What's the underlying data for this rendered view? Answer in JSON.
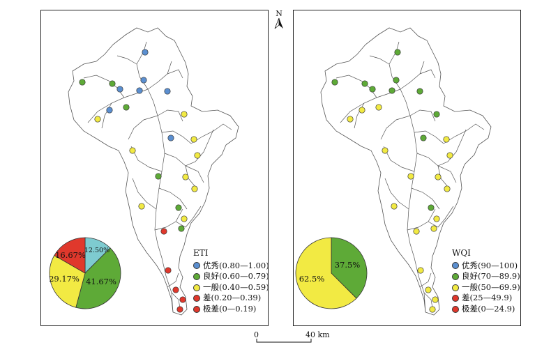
{
  "colors": {
    "excellent": "#5b8fd0",
    "good": "#5eaa37",
    "fair": "#f2ea43",
    "poor": "#e0382c",
    "very_poor": "#e0382c",
    "pie_cyan": "#7ecbd0"
  },
  "north_arrow": {
    "label": "N",
    "icon": "north-arrow-icon"
  },
  "scale_bar": {
    "start_label": "0",
    "end_label": "40 km"
  },
  "left_map": {
    "legend_title": "ETI",
    "legend": [
      {
        "label": "优秀(0.80—1.00)",
        "color": "#5b8fd0"
      },
      {
        "label": "良好(0.60—0.79)",
        "color": "#5eaa37"
      },
      {
        "label": "一般(0.40—0.59)",
        "color": "#f2ea43"
      },
      {
        "label": "差(0.20—0.39)",
        "color": "#e0382c"
      },
      {
        "label": "极差(0—0.19)",
        "color": "#e0382c"
      }
    ],
    "pie": [
      {
        "label": "12.50%",
        "value": 12.5,
        "color": "#7ecbd0"
      },
      {
        "label": "41.67%",
        "value": 41.67,
        "color": "#5eaa37"
      },
      {
        "label": "29.17%",
        "value": 29.17,
        "color": "#f2ea43"
      },
      {
        "label": "16.67%",
        "value": 16.67,
        "color": "#e0382c"
      }
    ],
    "sites": [
      {
        "x": 208,
        "y": 75,
        "c": "excellent"
      },
      {
        "x": 118,
        "y": 118,
        "c": "good"
      },
      {
        "x": 161,
        "y": 120,
        "c": "good"
      },
      {
        "x": 172,
        "y": 128,
        "c": "excellent"
      },
      {
        "x": 200,
        "y": 130,
        "c": "excellent"
      },
      {
        "x": 206,
        "y": 115,
        "c": "excellent"
      },
      {
        "x": 240,
        "y": 131,
        "c": "excellent"
      },
      {
        "x": 157,
        "y": 158,
        "c": "excellent"
      },
      {
        "x": 181,
        "y": 154,
        "c": "good"
      },
      {
        "x": 140,
        "y": 171,
        "c": "fair"
      },
      {
        "x": 264,
        "y": 164,
        "c": "fair"
      },
      {
        "x": 245,
        "y": 198,
        "c": "excellent"
      },
      {
        "x": 278,
        "y": 200,
        "c": "fair"
      },
      {
        "x": 190,
        "y": 216,
        "c": "fair"
      },
      {
        "x": 283,
        "y": 223,
        "c": "fair"
      },
      {
        "x": 227,
        "y": 253,
        "c": "good"
      },
      {
        "x": 266,
        "y": 254,
        "c": "fair"
      },
      {
        "x": 279,
        "y": 271,
        "c": "fair"
      },
      {
        "x": 203,
        "y": 296,
        "c": "fair"
      },
      {
        "x": 256,
        "y": 298,
        "c": "good"
      },
      {
        "x": 264,
        "y": 314,
        "c": "fair"
      },
      {
        "x": 260,
        "y": 328,
        "c": "good"
      },
      {
        "x": 235,
        "y": 332,
        "c": "poor"
      },
      {
        "x": 241,
        "y": 388,
        "c": "poor"
      },
      {
        "x": 252,
        "y": 416,
        "c": "poor"
      },
      {
        "x": 262,
        "y": 430,
        "c": "poor"
      },
      {
        "x": 258,
        "y": 444,
        "c": "poor"
      }
    ]
  },
  "right_map": {
    "legend_title": "WQI",
    "legend": [
      {
        "label": "优秀(90—100)",
        "color": "#5b8fd0"
      },
      {
        "label": "良好(70—89.9)",
        "color": "#5eaa37"
      },
      {
        "label": "一般(50—69.9)",
        "color": "#f2ea43"
      },
      {
        "label": "差(25—49.9)",
        "color": "#e0382c"
      },
      {
        "label": "极差(0—24.9)",
        "color": "#e0382c"
      }
    ],
    "pie": [
      {
        "label": "37.5%",
        "value": 37.5,
        "color": "#5eaa37"
      },
      {
        "label": "62.5%",
        "value": 62.5,
        "color": "#f2ea43"
      }
    ],
    "sites": [
      {
        "x": 570,
        "y": 75,
        "c": "good"
      },
      {
        "x": 480,
        "y": 118,
        "c": "good"
      },
      {
        "x": 523,
        "y": 120,
        "c": "good"
      },
      {
        "x": 534,
        "y": 128,
        "c": "good"
      },
      {
        "x": 562,
        "y": 130,
        "c": "good"
      },
      {
        "x": 568,
        "y": 115,
        "c": "good"
      },
      {
        "x": 602,
        "y": 131,
        "c": "good"
      },
      {
        "x": 519,
        "y": 158,
        "c": "fair"
      },
      {
        "x": 543,
        "y": 154,
        "c": "fair"
      },
      {
        "x": 502,
        "y": 171,
        "c": "fair"
      },
      {
        "x": 626,
        "y": 164,
        "c": "good"
      },
      {
        "x": 607,
        "y": 198,
        "c": "good"
      },
      {
        "x": 640,
        "y": 200,
        "c": "fair"
      },
      {
        "x": 552,
        "y": 216,
        "c": "fair"
      },
      {
        "x": 645,
        "y": 223,
        "c": "fair"
      },
      {
        "x": 589,
        "y": 253,
        "c": "fair"
      },
      {
        "x": 628,
        "y": 254,
        "c": "fair"
      },
      {
        "x": 641,
        "y": 271,
        "c": "fair"
      },
      {
        "x": 565,
        "y": 296,
        "c": "fair"
      },
      {
        "x": 618,
        "y": 298,
        "c": "good"
      },
      {
        "x": 626,
        "y": 314,
        "c": "fair"
      },
      {
        "x": 622,
        "y": 328,
        "c": "fair"
      },
      {
        "x": 597,
        "y": 332,
        "c": "fair"
      },
      {
        "x": 603,
        "y": 388,
        "c": "fair"
      },
      {
        "x": 614,
        "y": 416,
        "c": "fair"
      },
      {
        "x": 624,
        "y": 430,
        "c": "fair"
      },
      {
        "x": 620,
        "y": 444,
        "c": "fair"
      }
    ]
  }
}
